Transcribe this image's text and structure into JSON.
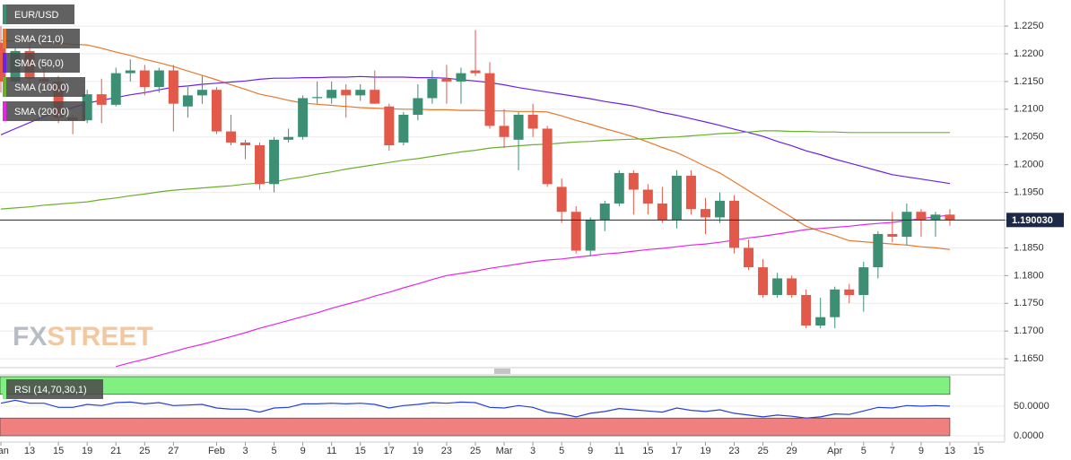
{
  "chart_data": {
    "type": "candlestick",
    "legend_title": "EUR/USD",
    "categories": [
      "Jan",
      null,
      "13",
      null,
      "15",
      null,
      "19",
      null,
      "21",
      null,
      "25",
      null,
      "27",
      null,
      null,
      "Feb",
      null,
      "3",
      null,
      "5",
      null,
      "9",
      null,
      "11",
      null,
      "15",
      null,
      "17",
      null,
      "19",
      null,
      "23",
      null,
      "25",
      null,
      "Mar",
      null,
      "3",
      null,
      "5",
      null,
      "9",
      null,
      "11",
      null,
      "15",
      null,
      "17",
      null,
      "19",
      null,
      "23",
      null,
      "25",
      null,
      "29",
      null,
      null,
      "Apr",
      null,
      "5",
      null,
      "7",
      null,
      "9",
      null,
      "13",
      null,
      "15"
    ],
    "open": [
      1.222,
      1.215,
      1.2205,
      1.2155,
      1.215,
      1.2085,
      1.208,
      1.2127,
      1.2108,
      1.2165,
      1.217,
      1.214,
      1.217,
      1.2105,
      1.2125,
      1.2135,
      1.206,
      1.204,
      1.2035,
      1.1965,
      1.2045,
      1.205,
      1.212,
      1.212,
      1.2135,
      1.2125,
      1.2135,
      1.2105,
      1.204,
      1.209,
      1.212,
      1.2155,
      1.215,
      1.217,
      1.2165,
      1.207,
      1.2045,
      1.209,
      1.2065,
      1.196,
      1.1915,
      1.1845,
      1.19,
      1.193,
      1.1985,
      1.1955,
      1.193,
      1.19,
      1.198,
      1.192,
      1.1905,
      1.1935,
      1.185,
      1.1815,
      1.1765,
      1.1795,
      1.1765,
      1.171,
      1.1725,
      1.1775,
      1.1765,
      1.1815,
      1.1875,
      1.187,
      1.1915,
      1.19,
      1.191,
      null,
      null
    ],
    "high": [
      1.225,
      1.221,
      1.222,
      1.2185,
      1.216,
      1.209,
      1.2135,
      1.2155,
      1.2175,
      1.219,
      1.218,
      1.2175,
      1.218,
      1.214,
      1.216,
      1.214,
      1.209,
      1.2045,
      1.204,
      1.205,
      1.2065,
      1.2125,
      1.215,
      1.215,
      1.2145,
      1.2145,
      1.217,
      1.211,
      1.2095,
      1.2145,
      1.217,
      1.218,
      1.2175,
      1.2243,
      1.2185,
      1.21,
      1.2095,
      1.211,
      1.207,
      1.1975,
      1.1925,
      1.1905,
      1.1935,
      1.199,
      1.199,
      1.1965,
      1.196,
      1.199,
      1.199,
      1.194,
      1.195,
      1.1945,
      1.1865,
      1.183,
      1.1805,
      1.18,
      1.1775,
      1.176,
      1.178,
      1.1785,
      1.1825,
      1.188,
      1.1915,
      1.193,
      1.192,
      1.1915,
      1.192,
      null,
      null
    ],
    "low": [
      1.213,
      1.2135,
      1.214,
      1.213,
      1.2075,
      1.2055,
      1.2075,
      1.2075,
      1.2105,
      1.215,
      1.2125,
      1.213,
      1.206,
      1.2085,
      1.211,
      1.2055,
      1.2035,
      1.201,
      1.1955,
      1.195,
      1.204,
      1.2045,
      1.211,
      1.211,
      1.2085,
      1.2115,
      1.211,
      1.2025,
      1.2035,
      1.208,
      1.211,
      1.211,
      1.211,
      1.216,
      1.2065,
      1.203,
      1.199,
      1.205,
      1.196,
      1.1895,
      1.184,
      1.1835,
      1.188,
      1.1925,
      1.191,
      1.191,
      1.1895,
      1.1885,
      1.191,
      1.1875,
      1.1895,
      1.184,
      1.181,
      1.176,
      1.176,
      1.176,
      1.1705,
      1.1705,
      1.1705,
      1.175,
      1.1735,
      1.1795,
      1.186,
      1.1855,
      1.187,
      1.187,
      1.189,
      null,
      null
    ],
    "close": [
      1.215,
      1.2205,
      1.2155,
      1.215,
      1.2085,
      1.208,
      1.2127,
      1.2108,
      1.2165,
      1.217,
      1.214,
      1.217,
      1.211,
      1.2125,
      1.2135,
      1.206,
      1.204,
      1.2035,
      1.1965,
      1.2045,
      1.205,
      1.212,
      1.2122,
      1.2135,
      1.2125,
      1.2135,
      1.211,
      1.2035,
      1.209,
      1.212,
      1.2155,
      1.215,
      1.2165,
      1.2165,
      1.207,
      1.205,
      1.209,
      1.2065,
      1.1965,
      1.1915,
      1.1845,
      1.19,
      1.193,
      1.1985,
      1.1955,
      1.193,
      1.19,
      1.198,
      1.192,
      1.1905,
      1.1935,
      1.185,
      1.1815,
      1.1765,
      1.1795,
      1.1765,
      1.171,
      1.1725,
      1.1775,
      1.1765,
      1.1815,
      1.1875,
      1.187,
      1.1915,
      1.19,
      1.191,
      1.19003,
      null,
      null
    ],
    "up_color": "#3c8f72",
    "down_color": "#e2594a",
    "series": [
      {
        "name": "SMA (21,0)",
        "color": "#e8782a",
        "values": [
          1.2224,
          1.2223,
          1.2221,
          1.222,
          1.2219,
          1.2217,
          1.2216,
          1.221,
          1.2203,
          1.2197,
          1.219,
          1.2184,
          1.2177,
          1.2169,
          1.2161,
          1.2153,
          1.2144,
          1.2136,
          1.2127,
          1.2122,
          1.2116,
          1.2111,
          1.2109,
          1.2107,
          1.2105,
          1.2103,
          1.2102,
          1.2101,
          1.21,
          1.21,
          1.2099,
          1.2099,
          1.2098,
          1.2098,
          1.2097,
          1.2097,
          1.2096,
          1.2096,
          1.2095,
          1.2088,
          1.208,
          1.2073,
          1.2065,
          1.2058,
          1.205,
          1.2041,
          1.2031,
          1.2022,
          1.201,
          1.1997,
          1.1985,
          1.1969,
          1.1953,
          1.1937,
          1.1921,
          1.1905,
          1.1889,
          1.188,
          1.1872,
          1.1863,
          1.1861,
          1.1859,
          1.1857,
          1.1855,
          1.1852,
          1.185,
          1.1847,
          null,
          null
        ]
      },
      {
        "name": "SMA (50,0)",
        "color": "#6a22e6",
        "values": [
          1.2054,
          1.2065,
          1.2076,
          1.2087,
          1.2095,
          1.2103,
          1.2111,
          1.2116,
          1.2121,
          1.2126,
          1.213,
          1.2135,
          1.214,
          1.2142,
          1.2145,
          1.2147,
          1.2149,
          1.2151,
          1.2154,
          1.2156,
          1.2156,
          1.2157,
          1.2157,
          1.2158,
          1.2158,
          1.2159,
          1.2158,
          1.2158,
          1.2158,
          1.2157,
          1.2157,
          1.2156,
          1.2153,
          1.2151,
          1.2148,
          1.2144,
          1.2139,
          1.2135,
          1.2131,
          1.2127,
          1.2123,
          1.2119,
          1.2114,
          1.211,
          1.2106,
          1.21,
          1.2094,
          1.2089,
          1.2083,
          1.2077,
          1.2071,
          1.2064,
          1.2058,
          1.2051,
          1.2042,
          1.2034,
          1.2025,
          1.2018,
          1.201,
          1.2003,
          1.1996,
          1.1989,
          1.1982,
          1.1978,
          1.1974,
          1.197,
          1.1966,
          null,
          null
        ]
      },
      {
        "name": "SMA (100,0)",
        "color": "#6ab02a",
        "values": [
          1.192,
          1.1922,
          1.1924,
          1.1927,
          1.1929,
          1.1931,
          1.1933,
          1.1937,
          1.194,
          1.1944,
          1.1947,
          1.1951,
          1.1954,
          1.1956,
          1.1958,
          1.196,
          1.1962,
          1.1965,
          1.1967,
          1.1969,
          1.1974,
          1.1978,
          1.1983,
          1.1987,
          1.1992,
          1.1996,
          1.2,
          1.2004,
          1.2008,
          1.2011,
          1.2015,
          1.2019,
          1.2023,
          1.2026,
          1.203,
          1.2032,
          1.2034,
          1.2036,
          1.2037,
          1.2039,
          1.2041,
          1.2042,
          1.2044,
          1.2045,
          1.2046,
          1.2047,
          1.2049,
          1.205,
          1.2052,
          1.2054,
          1.2056,
          1.2057,
          1.2059,
          1.2061,
          1.2061,
          1.206,
          1.206,
          1.2059,
          1.2059,
          1.2058,
          1.2058,
          1.2058,
          1.2058,
          1.2058,
          1.2058,
          1.2058,
          1.2058,
          null,
          null
        ]
      },
      {
        "name": "SMA (200,0)",
        "color": "#e626e6",
        "values": [
          null,
          null,
          null,
          null,
          null,
          null,
          null,
          null,
          1.1636,
          1.1643,
          1.1649,
          1.1656,
          1.1663,
          1.167,
          1.1676,
          1.1683,
          1.169,
          1.1697,
          1.1705,
          1.1712,
          1.1719,
          1.1726,
          1.1733,
          1.1741,
          1.1748,
          1.1755,
          1.1763,
          1.177,
          1.1778,
          1.1785,
          1.1793,
          1.18,
          1.1804,
          1.1808,
          1.1813,
          1.1817,
          1.1821,
          1.1825,
          1.1828,
          1.183,
          1.1833,
          1.1836,
          1.1839,
          1.1841,
          1.1844,
          1.1847,
          1.1849,
          1.1852,
          1.1855,
          1.1857,
          1.186,
          1.1864,
          1.1868,
          1.1871,
          1.1875,
          1.1879,
          1.1883,
          1.1885,
          1.1887,
          1.1889,
          1.1892,
          1.1894,
          1.1896,
          1.1899,
          1.1903,
          1.1906,
          1.1909,
          null,
          null
        ]
      }
    ],
    "ylim": [
      1.1634,
      1.2297
    ],
    "yticks": [
      {
        "value": 1.165,
        "label": "1.1650"
      },
      {
        "value": 1.17,
        "label": "1.1700"
      },
      {
        "value": 1.175,
        "label": "1.1750"
      },
      {
        "value": 1.18,
        "label": "1.1800"
      },
      {
        "value": 1.185,
        "label": "1.1850"
      },
      {
        "value": 1.19,
        "label": "1.1900"
      },
      {
        "value": 1.195,
        "label": "1.1950"
      },
      {
        "value": 1.2,
        "label": "1.2000"
      },
      {
        "value": 1.205,
        "label": "1.2050"
      },
      {
        "value": 1.21,
        "label": "1.2100"
      },
      {
        "value": 1.215,
        "label": "1.2150"
      },
      {
        "value": 1.22,
        "label": "1.2200"
      },
      {
        "value": 1.225,
        "label": "1.2250"
      }
    ],
    "grid": true,
    "last_price": {
      "value": 1.19003,
      "label": "1.190030"
    },
    "watermark": [
      "FX",
      "STREET"
    ],
    "rsi": {
      "name": "RSI (14,70,30,1)",
      "color": "#2440d8",
      "values": [
        55,
        60,
        55,
        55,
        48,
        48,
        53,
        51,
        56,
        57,
        54,
        56,
        51,
        52,
        53,
        47,
        45,
        45,
        40,
        47,
        48,
        54,
        54,
        55,
        54,
        55,
        53,
        47,
        51,
        53,
        56,
        55,
        57,
        56,
        48,
        47,
        51,
        48,
        40,
        37,
        32,
        38,
        41,
        46,
        44,
        42,
        40,
        47,
        43,
        41,
        44,
        38,
        35,
        32,
        35,
        33,
        30,
        32,
        37,
        36,
        42,
        48,
        47,
        51,
        50,
        51,
        50,
        null,
        null
      ],
      "upper_band": 70,
      "lower_band": 30,
      "upper_color": "#80f080",
      "lower_color": "#f08080",
      "ylim": [
        0,
        100
      ],
      "yticks": [
        {
          "value": 0,
          "label": "0.0000"
        },
        {
          "value": 50,
          "label": "50.0000"
        }
      ]
    }
  }
}
